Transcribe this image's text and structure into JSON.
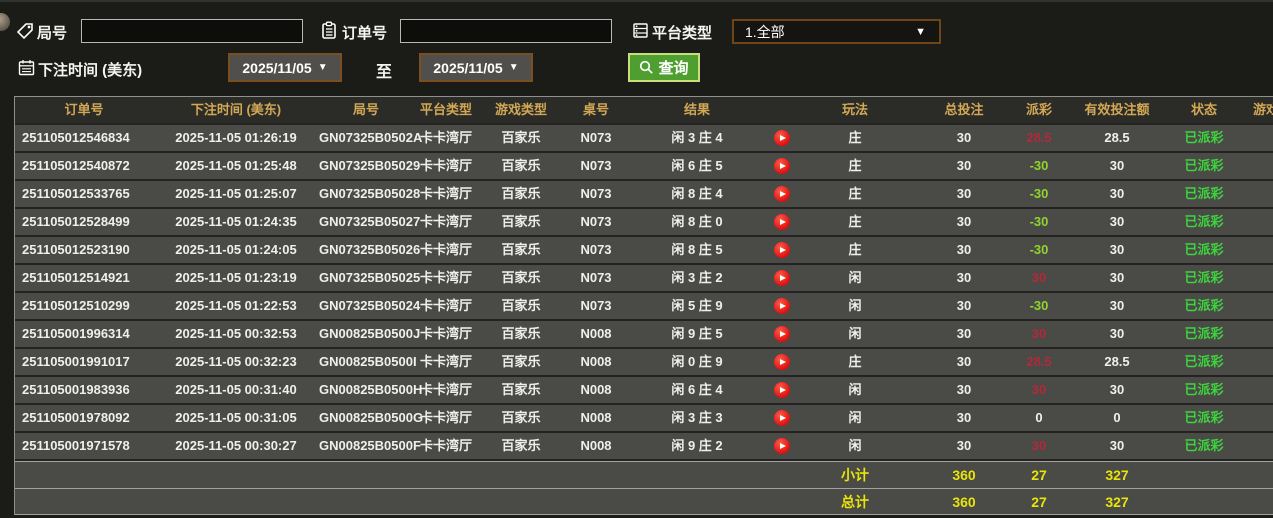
{
  "colors": {
    "header_text": "#d2a855",
    "payout_win": "#b02a38",
    "payout_loss": "#90d42e",
    "status_paid": "#3ed43e",
    "summary_text": "#e8e50a",
    "query_button": "#4e9e30"
  },
  "filters": {
    "game_no": {
      "label": "局号",
      "value": ""
    },
    "order_no": {
      "label": "订单号",
      "value": ""
    },
    "platform": {
      "label": "平台类型",
      "value": "1.全部"
    },
    "bet_time": {
      "label": "下注时间 (美东)",
      "from": "2025/11/05",
      "to_separator": "至",
      "to": "2025/11/05"
    },
    "query": {
      "label": "查询"
    }
  },
  "table": {
    "columns": [
      "订单号",
      "下注时间 (美东)",
      "局号",
      "平台类型",
      "游戏类型",
      "桌号",
      "结果",
      "",
      "玩法",
      "总投注",
      "派彩",
      "有效投注额",
      "状态",
      "游戏"
    ],
    "rows": [
      {
        "order": "251105012546834",
        "time": "2025-11-05 01:26:19",
        "game_no": "GN07325B0502A",
        "platform": "卡卡湾厅",
        "game_type": "百家乐",
        "table_no": "N073",
        "result": "闲 3 庄 4",
        "play_type": "庄",
        "total_bet": "30",
        "payout": "28.5",
        "valid_bet": "28.5",
        "status": "已派彩"
      },
      {
        "order": "251105012540872",
        "time": "2025-11-05 01:25:48",
        "game_no": "GN07325B05029",
        "platform": "卡卡湾厅",
        "game_type": "百家乐",
        "table_no": "N073",
        "result": "闲 6 庄 5",
        "play_type": "庄",
        "total_bet": "30",
        "payout": "-30",
        "valid_bet": "30",
        "status": "已派彩"
      },
      {
        "order": "251105012533765",
        "time": "2025-11-05 01:25:07",
        "game_no": "GN07325B05028",
        "platform": "卡卡湾厅",
        "game_type": "百家乐",
        "table_no": "N073",
        "result": "闲 8 庄 4",
        "play_type": "庄",
        "total_bet": "30",
        "payout": "-30",
        "valid_bet": "30",
        "status": "已派彩"
      },
      {
        "order": "251105012528499",
        "time": "2025-11-05 01:24:35",
        "game_no": "GN07325B05027",
        "platform": "卡卡湾厅",
        "game_type": "百家乐",
        "table_no": "N073",
        "result": "闲 8 庄 0",
        "play_type": "庄",
        "total_bet": "30",
        "payout": "-30",
        "valid_bet": "30",
        "status": "已派彩"
      },
      {
        "order": "251105012523190",
        "time": "2025-11-05 01:24:05",
        "game_no": "GN07325B05026",
        "platform": "卡卡湾厅",
        "game_type": "百家乐",
        "table_no": "N073",
        "result": "闲 8 庄 5",
        "play_type": "庄",
        "total_bet": "30",
        "payout": "-30",
        "valid_bet": "30",
        "status": "已派彩"
      },
      {
        "order": "251105012514921",
        "time": "2025-11-05 01:23:19",
        "game_no": "GN07325B05025",
        "platform": "卡卡湾厅",
        "game_type": "百家乐",
        "table_no": "N073",
        "result": "闲 3 庄 2",
        "play_type": "闲",
        "total_bet": "30",
        "payout": "30",
        "valid_bet": "30",
        "status": "已派彩"
      },
      {
        "order": "251105012510299",
        "time": "2025-11-05 01:22:53",
        "game_no": "GN07325B05024",
        "platform": "卡卡湾厅",
        "game_type": "百家乐",
        "table_no": "N073",
        "result": "闲 5 庄 9",
        "play_type": "闲",
        "total_bet": "30",
        "payout": "-30",
        "valid_bet": "30",
        "status": "已派彩"
      },
      {
        "order": "251105001996314",
        "time": "2025-11-05 00:32:53",
        "game_no": "GN00825B0500J",
        "platform": "卡卡湾厅",
        "game_type": "百家乐",
        "table_no": "N008",
        "result": "闲 9 庄 5",
        "play_type": "闲",
        "total_bet": "30",
        "payout": "30",
        "valid_bet": "30",
        "status": "已派彩"
      },
      {
        "order": "251105001991017",
        "time": "2025-11-05 00:32:23",
        "game_no": "GN00825B0500I",
        "platform": "卡卡湾厅",
        "game_type": "百家乐",
        "table_no": "N008",
        "result": "闲 0 庄 9",
        "play_type": "庄",
        "total_bet": "30",
        "payout": "28.5",
        "valid_bet": "28.5",
        "status": "已派彩"
      },
      {
        "order": "251105001983936",
        "time": "2025-11-05 00:31:40",
        "game_no": "GN00825B0500H",
        "platform": "卡卡湾厅",
        "game_type": "百家乐",
        "table_no": "N008",
        "result": "闲 6 庄 4",
        "play_type": "闲",
        "total_bet": "30",
        "payout": "30",
        "valid_bet": "30",
        "status": "已派彩"
      },
      {
        "order": "251105001978092",
        "time": "2025-11-05 00:31:05",
        "game_no": "GN00825B0500G",
        "platform": "卡卡湾厅",
        "game_type": "百家乐",
        "table_no": "N008",
        "result": "闲 3 庄 3",
        "play_type": "闲",
        "total_bet": "30",
        "payout": "0",
        "valid_bet": "0",
        "status": "已派彩"
      },
      {
        "order": "251105001971578",
        "time": "2025-11-05 00:30:27",
        "game_no": "GN00825B0500F",
        "platform": "卡卡湾厅",
        "game_type": "百家乐",
        "table_no": "N008",
        "result": "闲 9 庄 2",
        "play_type": "闲",
        "total_bet": "30",
        "payout": "30",
        "valid_bet": "30",
        "status": "已派彩"
      }
    ],
    "subtotal": {
      "label": "小计",
      "total_bet": "360",
      "payout": "27",
      "valid_bet": "327"
    },
    "grand_total": {
      "label": "总计",
      "total_bet": "360",
      "payout": "27",
      "valid_bet": "327"
    }
  }
}
